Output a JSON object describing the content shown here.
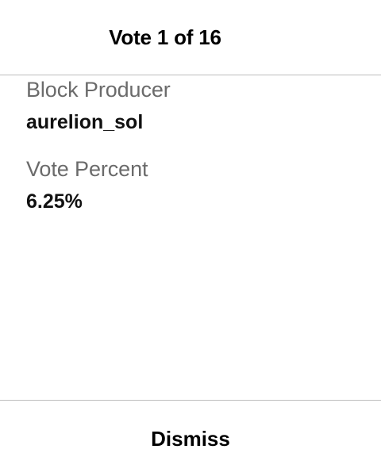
{
  "header": {
    "title": "Vote 1 of 16"
  },
  "vote": {
    "producer_label": "Block Producer",
    "producer_value": "aurelion_sol",
    "percent_label": "Vote Percent",
    "percent_value": "6.25%"
  },
  "footer": {
    "dismiss_label": "Dismiss"
  }
}
